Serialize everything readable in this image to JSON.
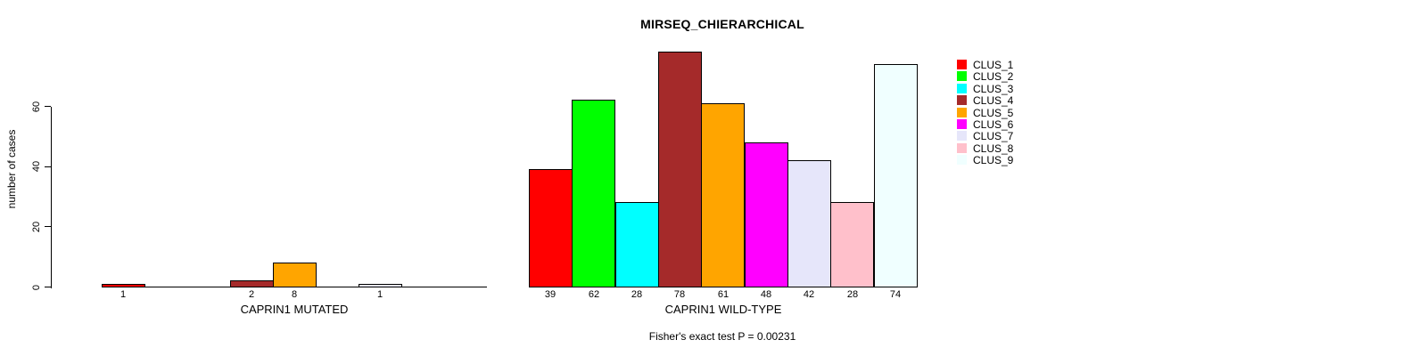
{
  "chart_data": {
    "type": "bar",
    "title": "MIRSEQ_CHIERARCHICAL",
    "ylabel": "number of cases",
    "footnote": "Fisher's exact test P = 0.00231",
    "yticks": [
      0,
      20,
      40,
      60
    ],
    "ylim": [
      0,
      78
    ],
    "grid": false,
    "legend_position": "right",
    "clusters": [
      {
        "name": "CLUS_1",
        "color": "#FF0000"
      },
      {
        "name": "CLUS_2",
        "color": "#00FF00"
      },
      {
        "name": "CLUS_3",
        "color": "#00FFFF"
      },
      {
        "name": "CLUS_4",
        "color": "#A52A2A"
      },
      {
        "name": "CLUS_5",
        "color": "#FFA500"
      },
      {
        "name": "CLUS_6",
        "color": "#FF00FF"
      },
      {
        "name": "CLUS_7",
        "color": "#E6E6FA"
      },
      {
        "name": "CLUS_8",
        "color": "#FFC0CB"
      },
      {
        "name": "CLUS_9",
        "color": "#F0FFFF"
      }
    ],
    "groups": [
      {
        "label": "CAPRIN1 MUTATED",
        "values": [
          1,
          0,
          0,
          2,
          8,
          0,
          1,
          0,
          0
        ]
      },
      {
        "label": "CAPRIN1 WILD-TYPE",
        "values": [
          39,
          62,
          28,
          78,
          61,
          48,
          42,
          28,
          74
        ]
      }
    ]
  }
}
